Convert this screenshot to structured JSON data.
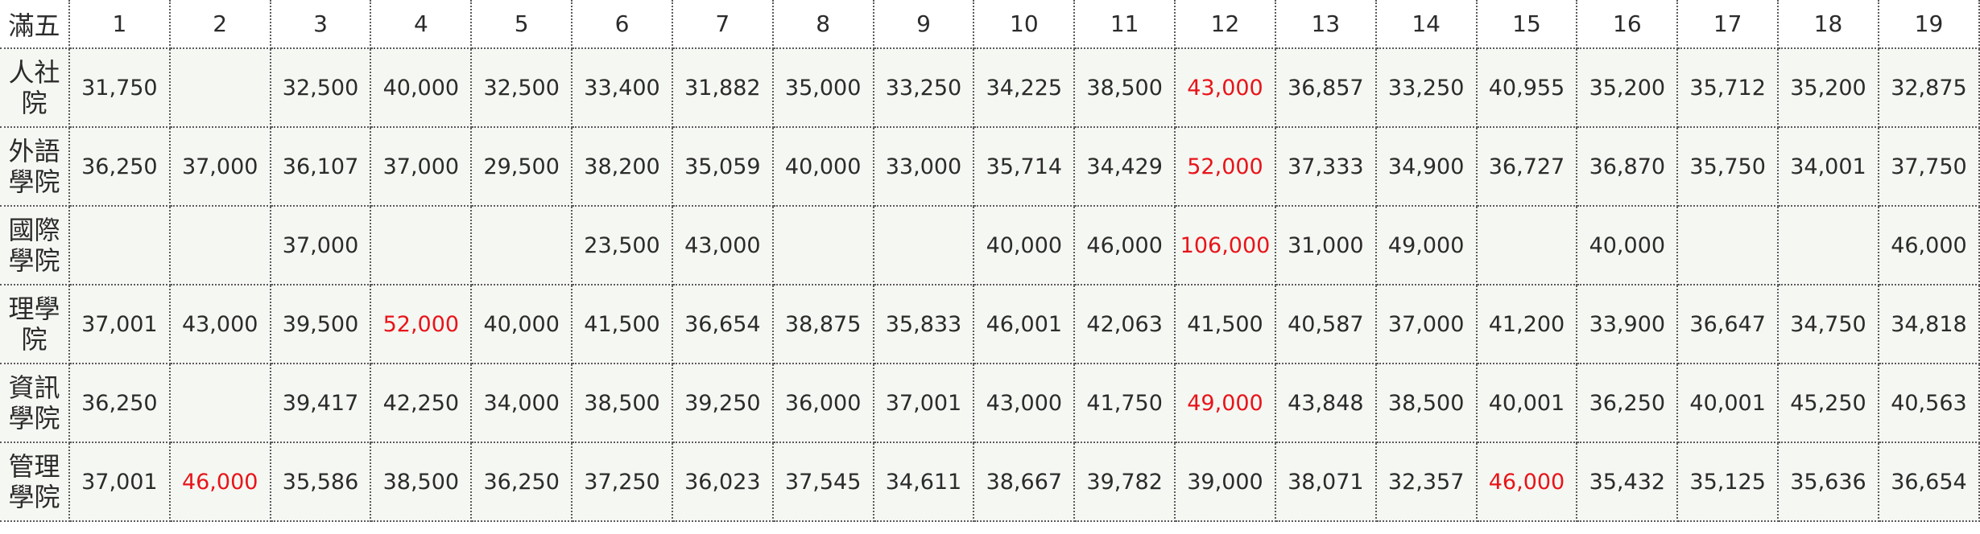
{
  "table": {
    "corner": "滿五",
    "columns": [
      "1",
      "2",
      "3",
      "4",
      "5",
      "6",
      "7",
      "8",
      "9",
      "10",
      "11",
      "12",
      "13",
      "14",
      "15",
      "16",
      "17",
      "18",
      "19"
    ],
    "highlight_color": "#e8141a",
    "rows": [
      {
        "label": "人社院",
        "values": [
          "31,750",
          "",
          "32,500",
          "40,000",
          "32,500",
          "33,400",
          "31,882",
          "35,000",
          "33,250",
          "34,225",
          "38,500",
          "43,000",
          "36,857",
          "33,250",
          "40,955",
          "35,200",
          "35,712",
          "35,200",
          "32,875"
        ],
        "highlight": [
          11
        ]
      },
      {
        "label": "外語學院",
        "values": [
          "36,250",
          "37,000",
          "36,107",
          "37,000",
          "29,500",
          "38,200",
          "35,059",
          "40,000",
          "33,000",
          "35,714",
          "34,429",
          "52,000",
          "37,333",
          "34,900",
          "36,727",
          "36,870",
          "35,750",
          "34,001",
          "37,750"
        ],
        "highlight": [
          11
        ]
      },
      {
        "label": "國際學院",
        "values": [
          "",
          "",
          "37,000",
          "",
          "",
          "23,500",
          "43,000",
          "",
          "",
          "40,000",
          "46,000",
          "106,000",
          "31,000",
          "49,000",
          "",
          "40,000",
          "",
          "",
          "46,000"
        ],
        "highlight": [
          11
        ]
      },
      {
        "label": "理學院",
        "values": [
          "37,001",
          "43,000",
          "39,500",
          "52,000",
          "40,000",
          "41,500",
          "36,654",
          "38,875",
          "35,833",
          "46,001",
          "42,063",
          "41,500",
          "40,587",
          "37,000",
          "41,200",
          "33,900",
          "36,647",
          "34,750",
          "34,818"
        ],
        "highlight": [
          3
        ]
      },
      {
        "label": "資訊學院",
        "values": [
          "36,250",
          "",
          "39,417",
          "42,250",
          "34,000",
          "38,500",
          "39,250",
          "36,000",
          "37,001",
          "43,000",
          "41,750",
          "49,000",
          "43,848",
          "38,500",
          "40,001",
          "36,250",
          "40,001",
          "45,250",
          "40,563"
        ],
        "highlight": [
          11
        ]
      },
      {
        "label": "管理學院",
        "values": [
          "37,001",
          "46,000",
          "35,586",
          "38,500",
          "36,250",
          "37,250",
          "36,023",
          "37,545",
          "34,611",
          "38,667",
          "39,782",
          "39,000",
          "38,071",
          "32,357",
          "46,000",
          "35,432",
          "35,125",
          "35,636",
          "36,654"
        ],
        "highlight": [
          1,
          14
        ]
      }
    ]
  }
}
